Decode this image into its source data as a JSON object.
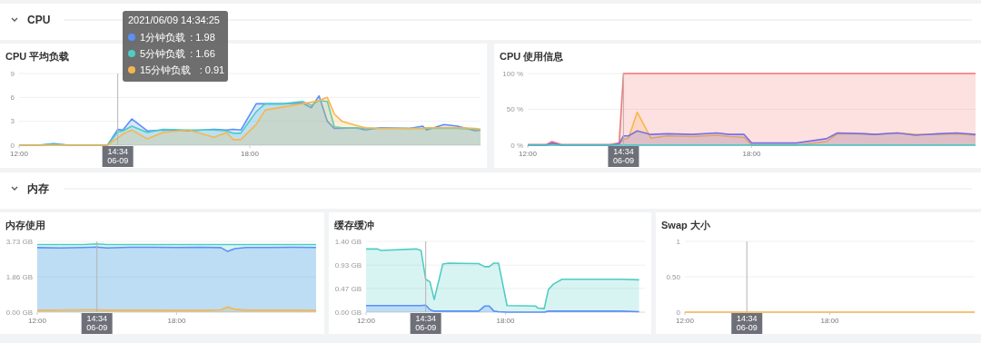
{
  "chart_data": [
    {
      "type": "other",
      "title": "CPU"
    },
    {
      "type": "area",
      "title": "CPU 平均负载",
      "xlim": [
        "2021-06-09T12:00",
        "2021-06-10T00:00"
      ],
      "xticks": [
        {
          "value": "2021-06-09T12:00",
          "label": "12:00"
        },
        {
          "value": "2021-06-09T18:00",
          "label": "18:00"
        }
      ],
      "ylim": [
        0,
        9
      ],
      "yticks": [
        0,
        3,
        6,
        9
      ],
      "grid": "y",
      "legend": "top left",
      "x": [
        "2021-06-09T12:00",
        "2021-06-09T12:30",
        "2021-06-09T12:54",
        "2021-06-09T13:18",
        "2021-06-09T13:48",
        "2021-06-09T14:18",
        "2021-06-09T14:34",
        "2021-06-09T14:42",
        "2021-06-09T14:56",
        "2021-06-09T15:20",
        "2021-06-09T15:45",
        "2021-06-09T16:24",
        "2021-06-09T17:04",
        "2021-06-09T17:24",
        "2021-06-09T17:34",
        "2021-06-09T17:46",
        "2021-06-09T18:10",
        "2021-06-09T18:24",
        "2021-06-09T18:52",
        "2021-06-09T19:22",
        "2021-06-09T19:36",
        "2021-06-09T19:48",
        "2021-06-09T20:01",
        "2021-06-09T20:12",
        "2021-06-09T20:24",
        "2021-06-09T20:45",
        "2021-06-09T21:00",
        "2021-06-09T21:24",
        "2021-06-09T22:09",
        "2021-06-09T22:30",
        "2021-06-09T22:36",
        "2021-06-09T23:03",
        "2021-06-09T23:24",
        "2021-06-09T23:52",
        "2021-06-10T00:00"
      ],
      "series": [
        {
          "name": "1分钟负载",
          "color": "#5b8ff9",
          "values": [
            0,
            0,
            0.2,
            0,
            0,
            0,
            1.98,
            1.9,
            3.3,
            1.8,
            1.9,
            1.8,
            2.0,
            1.9,
            2.0,
            1.9,
            5.2,
            5.2,
            5.2,
            5.3,
            4.7,
            6.2,
            3.0,
            2.1,
            2.1,
            2.2,
            1.9,
            2.2,
            2.1,
            2.4,
            1.9,
            2.6,
            2.4,
            1.8,
            1.9
          ]
        },
        {
          "name": "5分钟负载",
          "color": "#4ecdc4",
          "values": [
            0,
            0,
            0.1,
            0,
            0,
            0,
            1.66,
            1.8,
            2.4,
            1.6,
            2.0,
            1.9,
            1.9,
            1.8,
            1.5,
            1.5,
            4.2,
            5.2,
            5.2,
            5.5,
            5.0,
            5.6,
            5.5,
            2.3,
            2.2,
            2.2,
            2.1,
            2.1,
            2.1,
            2.1,
            2.1,
            2.1,
            2.1,
            2.0,
            2.0
          ]
        },
        {
          "name": "15分钟负载",
          "color": "#f8b54f",
          "values": [
            0,
            0,
            0,
            0,
            0,
            0,
            0.91,
            1.4,
            1.9,
            0.8,
            1.6,
            1.9,
            1.0,
            1.6,
            0.7,
            0.7,
            2.6,
            4.4,
            4.8,
            5.2,
            5.4,
            5.6,
            6.0,
            3.9,
            3.0,
            2.5,
            2.2,
            2.1,
            2.1,
            2.1,
            2.2,
            2.2,
            2.2,
            2.1,
            2.0
          ]
        }
      ],
      "ref_lines": [
        {
          "axis": "x",
          "value": "2021-06-09T14:34",
          "label": "14:34 06-09"
        }
      ],
      "annotations": [
        "2021/06/09 14:34:25",
        ": 1.98",
        ": 1.66",
        ": 0.91"
      ]
    },
    {
      "type": "area",
      "title": "CPU 使用信息",
      "xlim": [
        "2021-06-09T12:00",
        "2021-06-10T00:00"
      ],
      "xticks": [
        {
          "value": "2021-06-09T12:00",
          "label": "12:00"
        },
        {
          "value": "2021-06-09T18:00",
          "label": "18:00"
        }
      ],
      "ylim": [
        0,
        100
      ],
      "yticks": [
        {
          "value": 0,
          "label": "0 %"
        },
        {
          "value": 50,
          "label": "50 %"
        },
        {
          "value": 100,
          "label": "100 %"
        }
      ],
      "grid": "y",
      "x": [
        "2021-06-09T12:00",
        "2021-06-09T12:30",
        "2021-06-09T12:39",
        "2021-06-09T12:54",
        "2021-06-09T13:30",
        "2021-06-09T14:12",
        "2021-06-09T14:27",
        "2021-06-09T14:34",
        "2021-06-09T14:42",
        "2021-06-09T14:56",
        "2021-06-09T15:18",
        "2021-06-09T15:45",
        "2021-06-09T16:24",
        "2021-06-09T17:04",
        "2021-06-09T17:24",
        "2021-06-09T17:48",
        "2021-06-09T18:00",
        "2021-06-09T19:12",
        "2021-06-09T20:00",
        "2021-06-09T20:18",
        "2021-06-09T21:00",
        "2021-06-09T21:18",
        "2021-06-09T21:54",
        "2021-06-09T22:24",
        "2021-06-09T23:00",
        "2021-06-09T23:30",
        "2021-06-10T00:00"
      ],
      "series": [
        {
          "color": "#f27573",
          "values": [
            1,
            1,
            5,
            1,
            1,
            1,
            3,
            100,
            100,
            100,
            100,
            100,
            100,
            100,
            100,
            100,
            100,
            100,
            100,
            100,
            100,
            100,
            100,
            100,
            100,
            100,
            100
          ]
        },
        {
          "color": "#f8b54f",
          "values": [
            0,
            0,
            3,
            0,
            0,
            0,
            2,
            8,
            10,
            46,
            10,
            13,
            12,
            14,
            12,
            11,
            0,
            0,
            5,
            16,
            16,
            15,
            17,
            15,
            15,
            16,
            14
          ]
        },
        {
          "color": "#7b6fe0",
          "values": [
            0,
            0,
            3,
            0,
            0,
            0,
            2,
            13,
            13,
            20,
            15,
            16,
            15,
            17,
            15,
            15,
            3,
            3,
            9,
            17,
            16,
            15,
            17,
            14,
            16,
            17,
            15
          ]
        },
        {
          "type": "line",
          "color": "#3fc6c6",
          "values": [
            0,
            0,
            0,
            0,
            0,
            0,
            0,
            0,
            0,
            0,
            0,
            0,
            0,
            0,
            0,
            0,
            0,
            0,
            0,
            0,
            0,
            0,
            0,
            0,
            0,
            0,
            0
          ]
        }
      ],
      "ref_lines": [
        {
          "axis": "x",
          "value": "2021-06-09T14:34",
          "label": "14:34 06-09"
        }
      ]
    },
    {
      "type": "other",
      "title": "内存"
    },
    {
      "type": "area",
      "title": "内存使用",
      "xlim": [
        "2021-06-09T12:00",
        "2021-06-10T00:00"
      ],
      "xticks": [
        {
          "value": "2021-06-09T12:00",
          "label": "12:00"
        },
        {
          "value": "2021-06-09T18:00",
          "label": "18:00"
        }
      ],
      "ylim": [
        0,
        3.73
      ],
      "yticks": [
        {
          "value": 0,
          "label": "0.00 GB"
        },
        {
          "value": 1.86,
          "label": "1.86 GB"
        },
        {
          "value": 3.73,
          "label": "3.73 GB"
        }
      ],
      "grid": "y",
      "x": [
        "2021-06-09T12:00",
        "2021-06-09T13:00",
        "2021-06-09T14:00",
        "2021-06-09T14:34",
        "2021-06-09T15:00",
        "2021-06-09T16:00",
        "2021-06-09T17:00",
        "2021-06-09T18:00",
        "2021-06-09T19:00",
        "2021-06-09T19:54",
        "2021-06-09T20:12",
        "2021-06-09T20:30",
        "2021-06-09T21:00",
        "2021-06-09T22:00",
        "2021-06-09T23:00",
        "2021-06-10T00:00"
      ],
      "series": [
        {
          "color": "#4ecdc4",
          "values": [
            3.56,
            3.56,
            3.56,
            3.6,
            3.56,
            3.56,
            3.56,
            3.56,
            3.56,
            3.56,
            3.56,
            3.56,
            3.56,
            3.56,
            3.56,
            3.56
          ]
        },
        {
          "color": "#5b8ff9",
          "values": [
            3.4,
            3.38,
            3.41,
            3.43,
            3.38,
            3.42,
            3.42,
            3.41,
            3.42,
            3.4,
            3.2,
            3.35,
            3.41,
            3.41,
            3.42,
            3.41
          ]
        },
        {
          "color": "#f8b54f",
          "values": [
            0.1,
            0.11,
            0.12,
            0.12,
            0.1,
            0.1,
            0.1,
            0.09,
            0.09,
            0.12,
            0.27,
            0.15,
            0.1,
            0.1,
            0.1,
            0.09
          ]
        }
      ],
      "ref_lines": [
        {
          "axis": "x",
          "value": "2021-06-09T14:34",
          "label": "14:34 06-09"
        }
      ]
    },
    {
      "type": "area",
      "title": "缓存缓冲",
      "xlim": [
        "2021-06-09T12:00",
        "2021-06-10T00:00"
      ],
      "xticks": [
        {
          "value": "2021-06-09T12:00",
          "label": "12:00"
        },
        {
          "value": "2021-06-09T18:00",
          "label": "18:00"
        }
      ],
      "ylim": [
        0,
        1.4
      ],
      "yticks": [
        {
          "value": 0,
          "label": "0.00 GB"
        },
        {
          "value": 0.47,
          "label": "0.47 GB"
        },
        {
          "value": 0.93,
          "label": "0.93 GB"
        },
        {
          "value": 1.4,
          "label": "1.40 GB"
        }
      ],
      "grid": "y",
      "x": [
        "2021-06-09T12:00",
        "2021-06-09T12:30",
        "2021-06-09T12:38",
        "2021-06-09T14:10",
        "2021-06-09T14:22",
        "2021-06-09T14:34",
        "2021-06-09T14:45",
        "2021-06-09T14:56",
        "2021-06-09T15:18",
        "2021-06-09T15:33",
        "2021-06-09T16:51",
        "2021-06-09T17:06",
        "2021-06-09T17:18",
        "2021-06-09T17:30",
        "2021-06-09T17:42",
        "2021-06-09T18:04",
        "2021-06-09T19:18",
        "2021-06-09T19:24",
        "2021-06-09T19:40",
        "2021-06-09T19:51",
        "2021-06-09T20:03",
        "2021-06-09T20:26",
        "2021-06-09T21:00",
        "2021-06-09T22:00",
        "2021-06-09T23:00",
        "2021-06-09T23:45"
      ],
      "series": [
        {
          "color": "#4ecdc4",
          "values": [
            1.25,
            1.25,
            1.22,
            1.25,
            1.22,
            0.65,
            0.6,
            0.25,
            0.95,
            0.97,
            0.96,
            0.9,
            0.9,
            0.97,
            0.97,
            0.13,
            0.12,
            0.08,
            0.07,
            0.45,
            0.55,
            0.65,
            0.65,
            0.65,
            0.65,
            0.64
          ]
        },
        {
          "color": "#5b8ff9",
          "values": [
            0.13,
            0.13,
            0.13,
            0.13,
            0.13,
            0.14,
            0.05,
            0.02,
            0.02,
            0.02,
            0.02,
            0.12,
            0.12,
            0.02,
            0.01,
            0,
            0,
            0,
            0,
            0.02,
            0.02,
            0.02,
            0.02,
            0.02,
            0.02,
            0.01
          ]
        }
      ],
      "ref_lines": [
        {
          "axis": "x",
          "value": "2021-06-09T14:34",
          "label": "14:34 06-09"
        }
      ]
    },
    {
      "type": "line",
      "title": "Swap 大小",
      "xlim": [
        "2021-06-09T12:00",
        "2021-06-10T00:00"
      ],
      "xticks": [
        {
          "value": "2021-06-09T12:00",
          "label": "12:00"
        },
        {
          "value": "2021-06-09T18:00",
          "label": "18:00"
        }
      ],
      "ylim": [
        0,
        1
      ],
      "yticks": [
        0,
        {
          "value": 0.5,
          "label": "0.50"
        },
        1
      ],
      "grid": "y",
      "x": [
        "2021-06-09T12:00",
        "2021-06-10T00:00"
      ],
      "series": [
        {
          "color": "#f8b54f",
          "values": [
            0,
            0
          ]
        }
      ],
      "ref_lines": [
        {
          "axis": "x",
          "value": "2021-06-09T14:34",
          "label": "14:34 06-09"
        }
      ]
    }
  ]
}
